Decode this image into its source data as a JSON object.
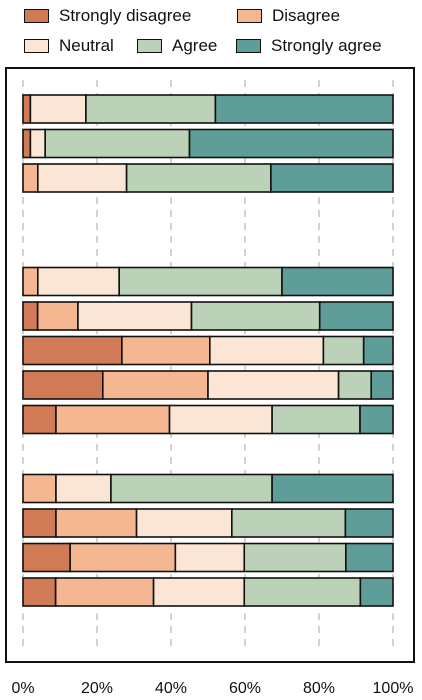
{
  "chart_data": {
    "type": "bar",
    "orientation": "horizontal",
    "stacked": true,
    "title": "",
    "xlabel": "",
    "ylabel": "",
    "xlim": [
      0,
      100
    ],
    "x_ticks": [
      0,
      20,
      40,
      60,
      80,
      100
    ],
    "x_tick_labels": [
      "0%",
      "20%",
      "40%",
      "60%",
      "80%",
      "100%"
    ],
    "grid": "vertical dashed",
    "legend_position": "top",
    "categories": [
      "Strongly disagree",
      "Disagree",
      "Neutral",
      "Agree",
      "Strongly agree"
    ],
    "colors": [
      "#d07b56",
      "#f4b792",
      "#fbe5d4",
      "#bcd2b8",
      "#5f9d98"
    ],
    "groups": [
      {
        "rows": [
          [
            2,
            0,
            15,
            35,
            48
          ],
          [
            2,
            0,
            4,
            39,
            55
          ],
          [
            0,
            4,
            24,
            39,
            33
          ]
        ]
      },
      {
        "rows": [
          [
            0,
            4,
            22,
            44,
            30
          ],
          [
            4,
            11,
            31,
            35,
            20
          ],
          [
            27,
            24,
            31,
            11,
            8
          ],
          [
            22,
            29,
            36,
            9,
            6
          ],
          [
            9,
            31,
            28,
            24,
            9
          ]
        ]
      },
      {
        "rows": [
          [
            0,
            9,
            15,
            44,
            33
          ],
          [
            9,
            22,
            26,
            31,
            13
          ],
          [
            13,
            29,
            19,
            28,
            13
          ],
          [
            9,
            27,
            25,
            32,
            9
          ]
        ]
      }
    ]
  }
}
